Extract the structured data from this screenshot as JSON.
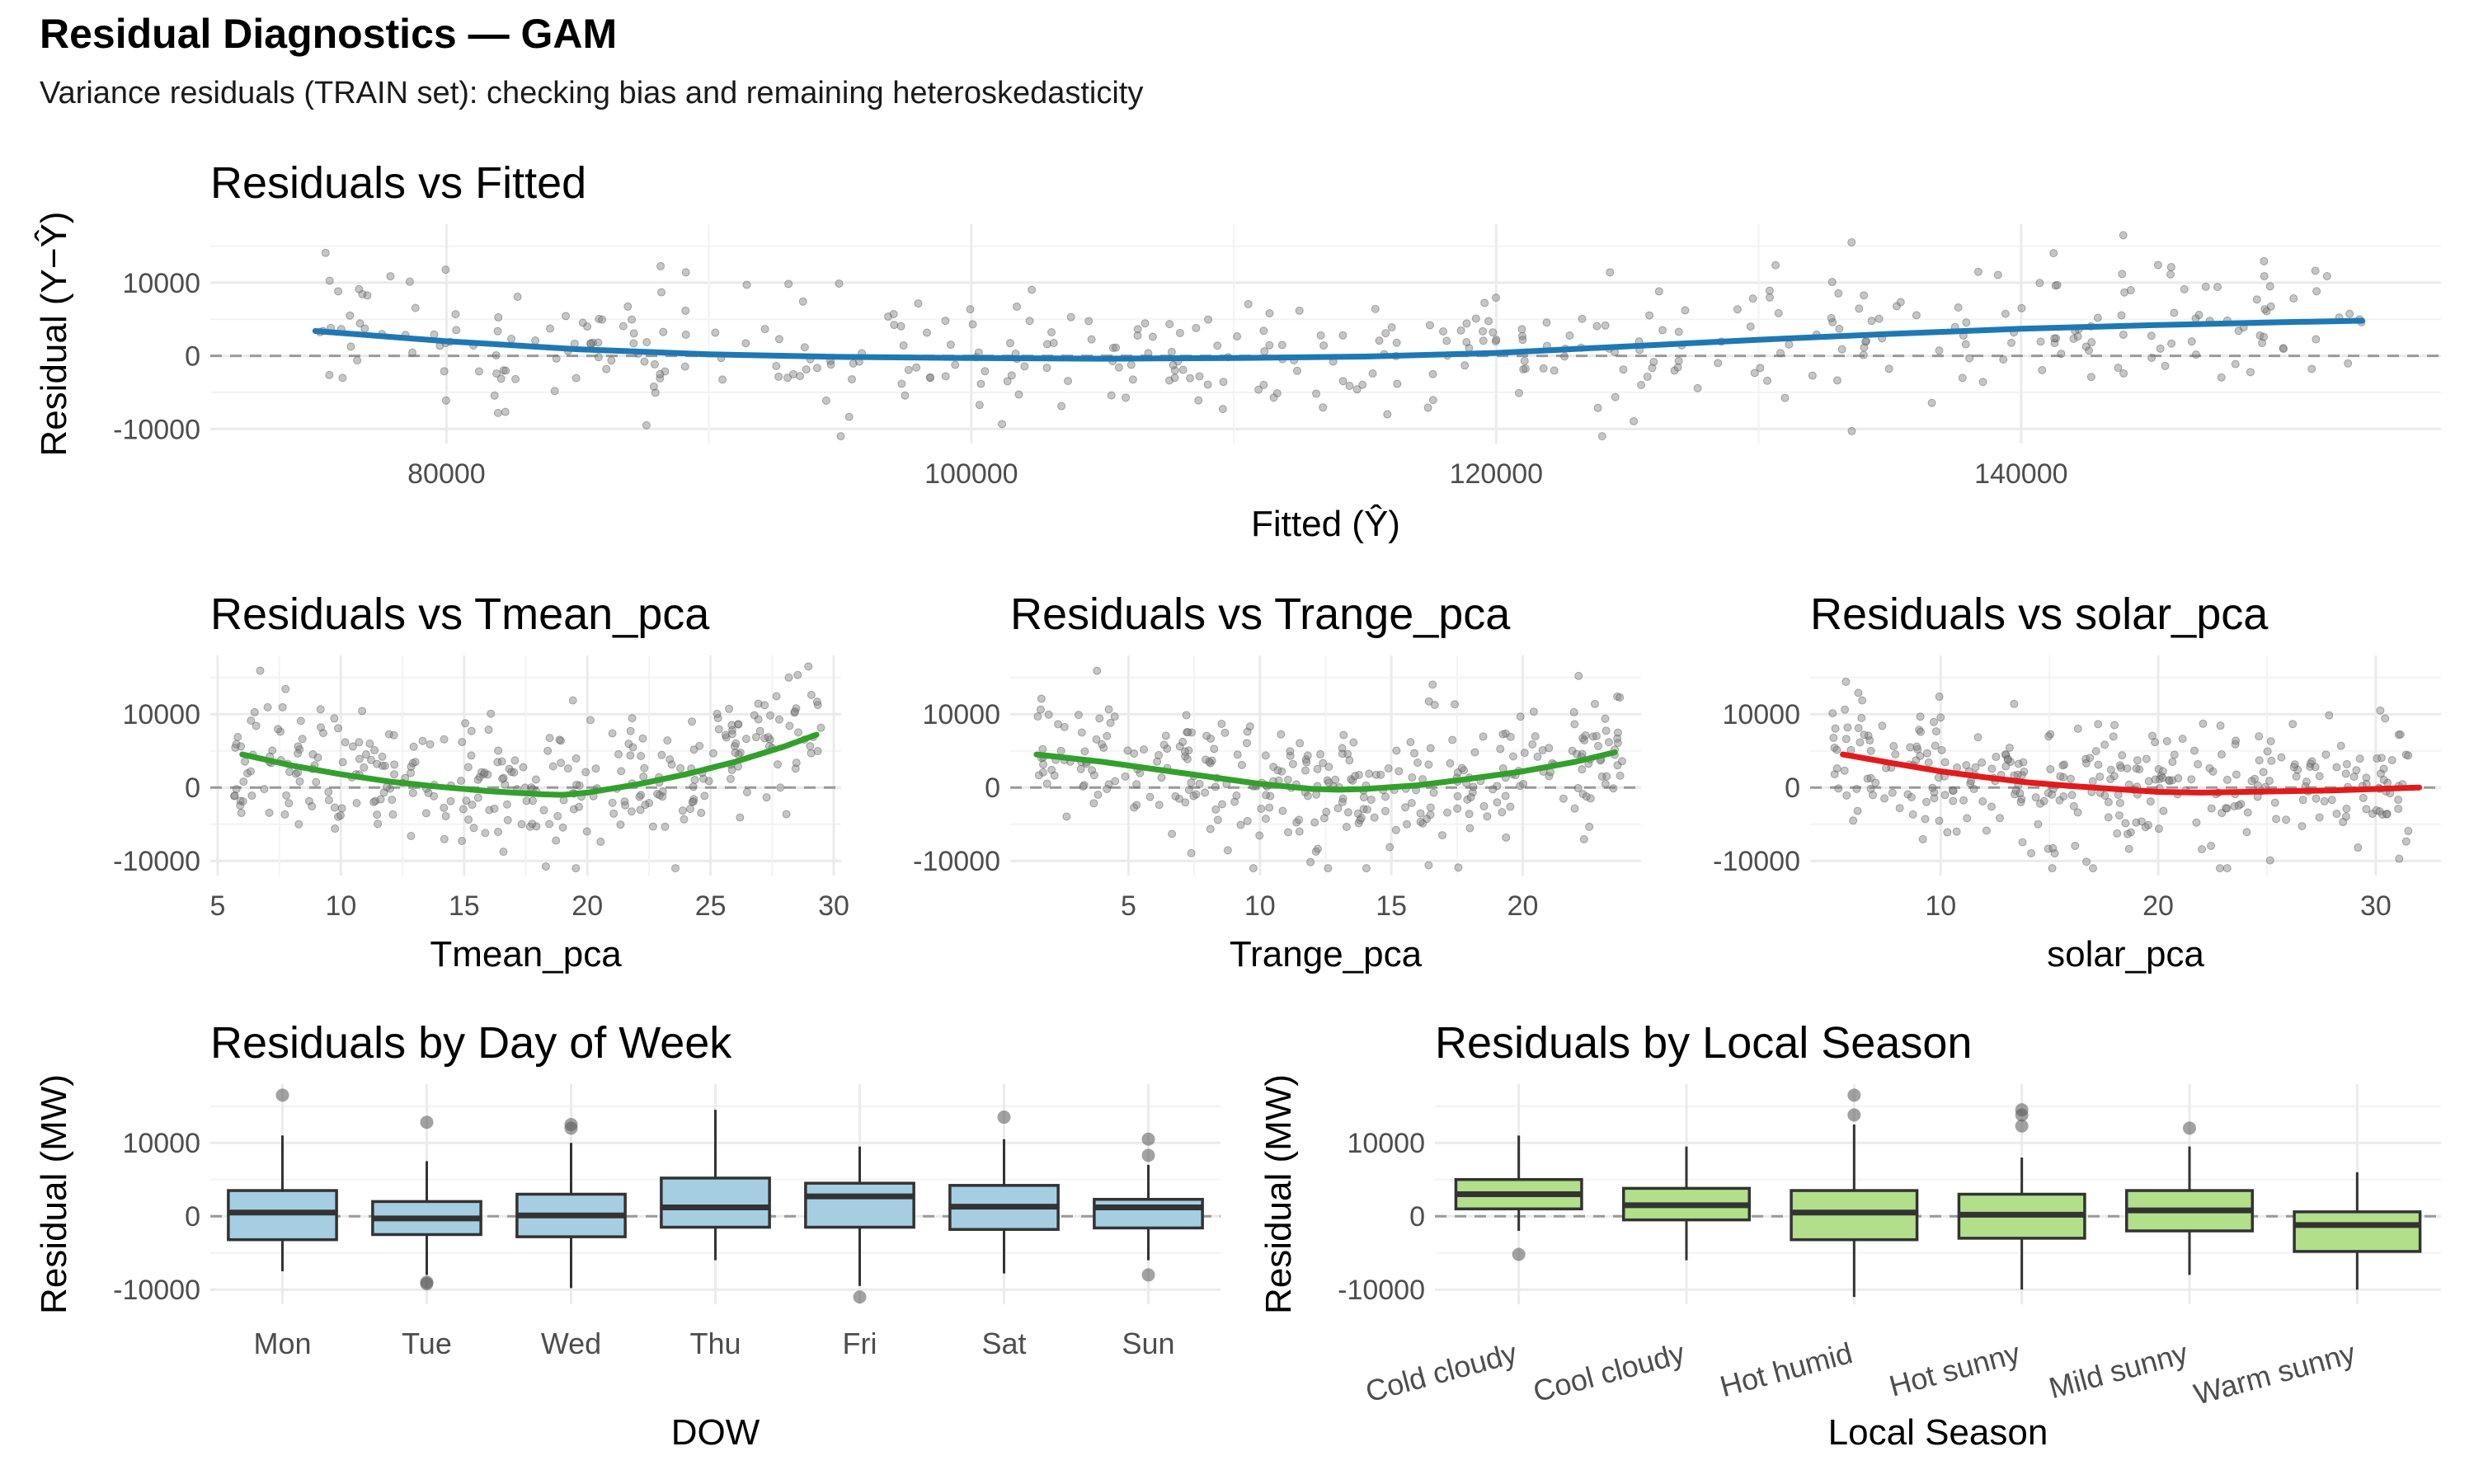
{
  "title": "Residual Diagnostics — GAM",
  "subtitle": "Variance residuals (TRAIN set): checking bias and remaining heteroskedasticity",
  "colors": {
    "blue": "#1f78b4",
    "green": "#33a02c",
    "red": "#e31a1c",
    "box_dow": "#a6cee3",
    "box_season": "#b2df8a",
    "points": "#7f7f7f",
    "grid": "#ebebeb"
  },
  "chart_data": [
    {
      "type": "scatter",
      "title": "Residuals vs Fitted",
      "xlabel": "Fitted (Ŷ)",
      "ylabel": "Residual (Y−Ŷ)",
      "xlim": [
        71000,
        156000
      ],
      "ylim": [
        -12000,
        18000
      ],
      "xticks": [
        80000,
        100000,
        120000,
        140000
      ],
      "xtick_labels": [
        "80000",
        "100000",
        "120000",
        "140000"
      ],
      "yticks": [
        -10000,
        0,
        10000
      ],
      "ytick_labels": [
        "-10000",
        "0",
        "10000"
      ],
      "reference_line": 0,
      "n_points": 420,
      "point_x_range": [
        75000,
        153000
      ],
      "point_y_range": [
        -11000,
        16500
      ],
      "smooth": {
        "color": "blue",
        "x": [
          75000,
          80000,
          85000,
          90000,
          95000,
          100000,
          105000,
          110000,
          115000,
          120000,
          125000,
          130000,
          135000,
          140000,
          145000,
          150000,
          153000
        ],
        "y": [
          3400,
          2000,
          900,
          200,
          -150,
          -300,
          -400,
          -300,
          -100,
          400,
          1300,
          2200,
          3000,
          3700,
          4200,
          4600,
          4800
        ]
      }
    },
    {
      "type": "scatter",
      "title": "Residuals vs Tmean_pca",
      "xlabel": "Tmean_pca",
      "ylabel": "",
      "xlim": [
        4.7,
        30.3
      ],
      "ylim": [
        -12000,
        18000
      ],
      "xticks": [
        5,
        10,
        15,
        20,
        25,
        30
      ],
      "xtick_labels": [
        "5",
        "10",
        "15",
        "20",
        "25",
        "30"
      ],
      "yticks": [
        -10000,
        0,
        10000
      ],
      "ytick_labels": [
        "-10000",
        "0",
        "10000"
      ],
      "reference_line": 0,
      "n_points": 320,
      "point_x_range": [
        5.5,
        29.5
      ],
      "point_y_range": [
        -11000,
        16500
      ],
      "smooth": {
        "color": "green",
        "x": [
          6,
          8,
          10,
          12,
          14,
          16,
          18,
          19,
          20,
          22,
          24,
          26,
          28,
          29.3
        ],
        "y": [
          4500,
          3000,
          1800,
          800,
          100,
          -500,
          -900,
          -1000,
          -700,
          400,
          1800,
          3500,
          5600,
          7200
        ]
      }
    },
    {
      "type": "scatter",
      "title": "Residuals vs Trange_pca",
      "xlabel": "Trange_pca",
      "ylabel": "",
      "xlim": [
        0.5,
        24.5
      ],
      "ylim": [
        -12000,
        18000
      ],
      "xticks": [
        5,
        10,
        15,
        20
      ],
      "xtick_labels": [
        "5",
        "10",
        "15",
        "20"
      ],
      "yticks": [
        -10000,
        0,
        10000
      ],
      "ytick_labels": [
        "-10000",
        "0",
        "10000"
      ],
      "reference_line": 0,
      "n_points": 330,
      "point_x_range": [
        1.5,
        23.8
      ],
      "point_y_range": [
        -11000,
        16500
      ],
      "smooth": {
        "color": "green",
        "x": [
          1.5,
          4,
          6,
          8,
          10,
          12,
          13,
          14,
          16,
          18,
          20,
          22,
          23.5
        ],
        "y": [
          4500,
          3500,
          2500,
          1500,
          500,
          -200,
          -300,
          -200,
          300,
          1200,
          2200,
          3500,
          4800
        ]
      }
    },
    {
      "type": "scatter",
      "title": "Residuals vs solar_pca",
      "xlabel": "solar_pca",
      "ylabel": "",
      "xlim": [
        4.0,
        33.0
      ],
      "ylim": [
        -12000,
        18000
      ],
      "xticks": [
        10,
        20,
        30
      ],
      "xtick_labels": [
        "10",
        "20",
        "30"
      ],
      "yticks": [
        -10000,
        0,
        10000
      ],
      "ytick_labels": [
        "-10000",
        "0",
        "10000"
      ],
      "reference_line": 0,
      "n_points": 330,
      "point_x_range": [
        5.0,
        32.0
      ],
      "point_y_range": [
        -11000,
        16500
      ],
      "smooth": {
        "color": "red",
        "x": [
          5.5,
          8,
          10,
          12,
          14,
          16,
          18,
          20,
          22,
          24,
          26,
          28,
          30,
          32
        ],
        "y": [
          4500,
          3200,
          2200,
          1400,
          700,
          200,
          -200,
          -600,
          -700,
          -600,
          -500,
          -400,
          -200,
          0
        ]
      }
    },
    {
      "type": "box",
      "title": "Residuals by Day of Week",
      "xlabel": "DOW",
      "ylabel": "Residual (MW)",
      "ylim": [
        -12000,
        18000
      ],
      "yticks": [
        -10000,
        0,
        10000
      ],
      "ytick_labels": [
        "-10000",
        "0",
        "10000"
      ],
      "reference_line": 0,
      "fill": "box_dow",
      "categories": [
        "Mon",
        "Tue",
        "Wed",
        "Thu",
        "Fri",
        "Sat",
        "Sun"
      ],
      "boxes": [
        {
          "min": -7500,
          "q1": -3200,
          "median": 500,
          "q3": 3500,
          "max": 11000,
          "outliers": [
            16500
          ]
        },
        {
          "min": -8000,
          "q1": -2500,
          "median": -300,
          "q3": 2000,
          "max": 7500,
          "outliers": [
            12800,
            -9200,
            -9000
          ]
        },
        {
          "min": -9800,
          "q1": -2800,
          "median": 100,
          "q3": 3000,
          "max": 10000,
          "outliers": [
            12500,
            12000
          ]
        },
        {
          "min": -6000,
          "q1": -1500,
          "median": 1200,
          "q3": 5200,
          "max": 14500,
          "outliers": []
        },
        {
          "min": -9500,
          "q1": -1500,
          "median": 2700,
          "q3": 4500,
          "max": 9500,
          "outliers": [
            -11000
          ]
        },
        {
          "min": -7800,
          "q1": -1800,
          "median": 1300,
          "q3": 4200,
          "max": 10500,
          "outliers": [
            13500
          ]
        },
        {
          "min": -6000,
          "q1": -1600,
          "median": 1200,
          "q3": 2300,
          "max": 7000,
          "outliers": [
            10500,
            8300,
            -8000
          ]
        }
      ]
    },
    {
      "type": "box",
      "title": "Residuals by Local Season",
      "xlabel": "Local Season",
      "ylabel": "Residual (MW)",
      "ylim": [
        -12000,
        18000
      ],
      "yticks": [
        -10000,
        0,
        10000
      ],
      "ytick_labels": [
        "-10000",
        "0",
        "10000"
      ],
      "reference_line": 0,
      "fill": "box_season",
      "categories": [
        "Cold cloudy",
        "Cool cloudy",
        "Hot humid",
        "Hot sunny",
        "Mild sunny",
        "Warm sunny"
      ],
      "boxes": [
        {
          "min": -2000,
          "q1": 1000,
          "median": 3000,
          "q3": 5000,
          "max": 11000,
          "outliers": [
            -5200
          ]
        },
        {
          "min": -6000,
          "q1": -500,
          "median": 1500,
          "q3": 3800,
          "max": 9500,
          "outliers": []
        },
        {
          "min": -11000,
          "q1": -3200,
          "median": 500,
          "q3": 3500,
          "max": 12500,
          "outliers": [
            16500,
            13800
          ]
        },
        {
          "min": -10000,
          "q1": -3000,
          "median": 200,
          "q3": 3000,
          "max": 8000,
          "outliers": [
            14500,
            13800,
            12300
          ]
        },
        {
          "min": -8000,
          "q1": -2000,
          "median": 800,
          "q3": 3500,
          "max": 9500,
          "outliers": [
            12000
          ]
        },
        {
          "min": -10000,
          "q1": -4800,
          "median": -1200,
          "q3": 600,
          "max": 6000,
          "outliers": []
        }
      ]
    }
  ]
}
